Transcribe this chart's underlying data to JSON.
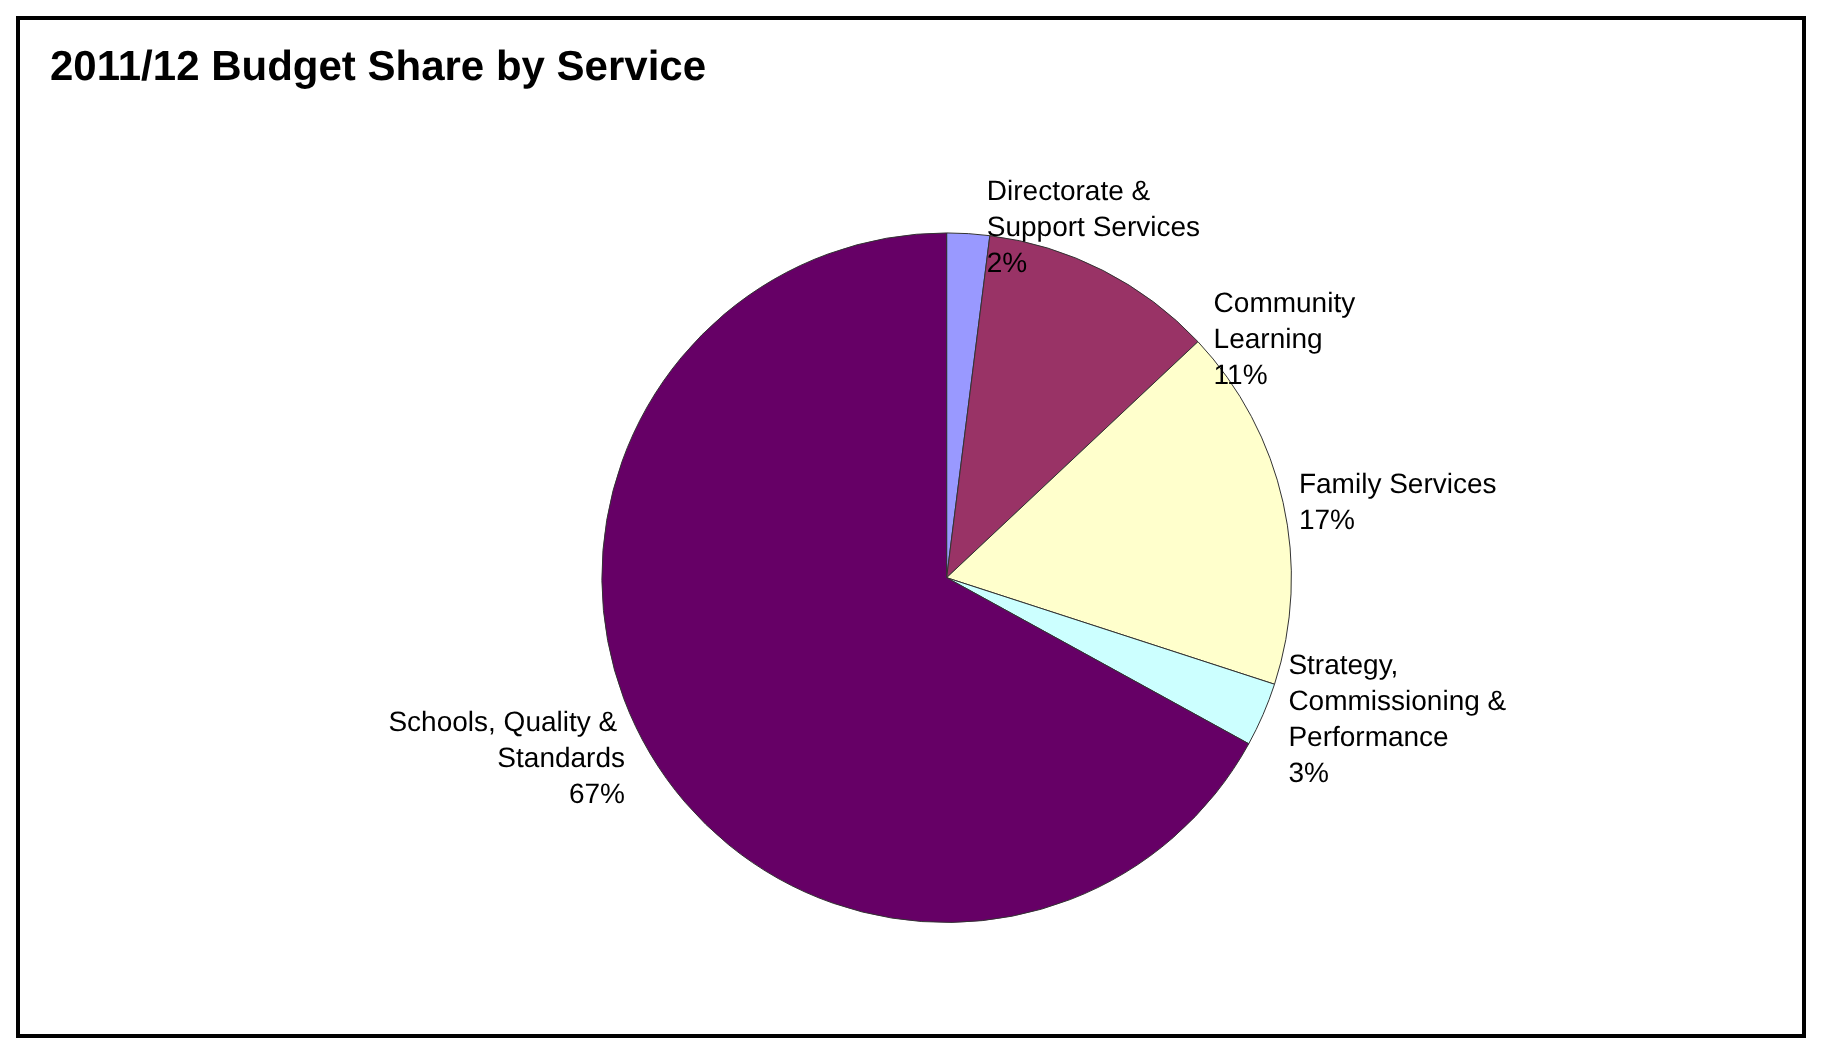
{
  "chart_data": {
    "type": "pie",
    "title": "2011/12 Budget Share by Service",
    "categories": [
      "Directorate & Support Services",
      "Community Learning",
      "Family Services",
      "Strategy, Commissioning & Performance",
      "Schools, Quality & Standards"
    ],
    "values": [
      2,
      11,
      17,
      3,
      67
    ],
    "colors": [
      "#9999ff",
      "#993366",
      "#ffffcc",
      "#ccffff",
      "#660066"
    ],
    "value_labels": [
      "2%",
      "11%",
      "17%",
      "3%",
      "67%"
    ],
    "legend": false
  }
}
